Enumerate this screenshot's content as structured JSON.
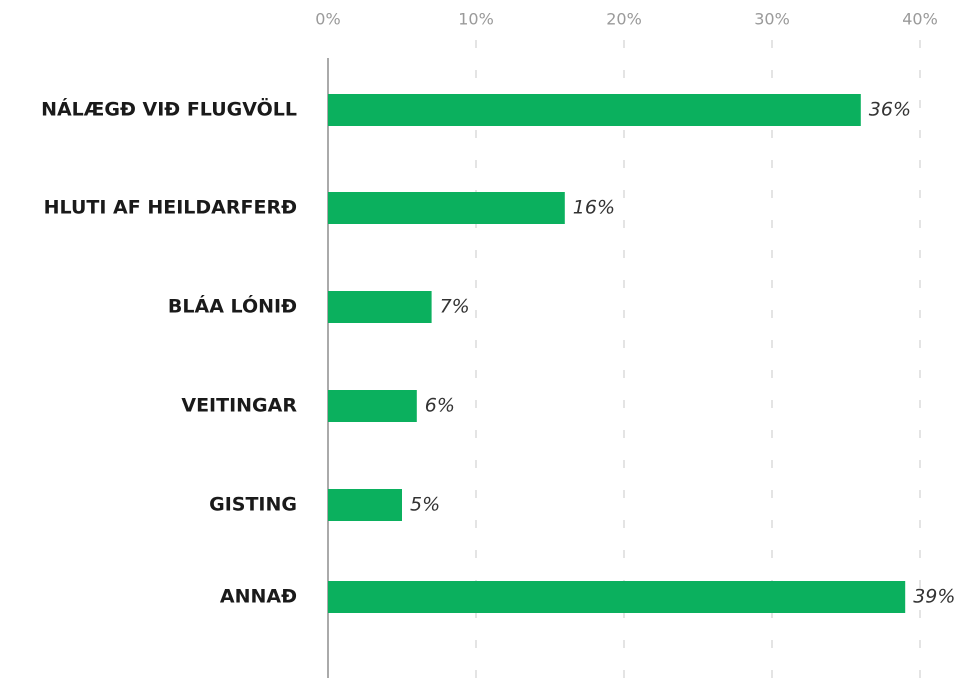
{
  "chart_data": {
    "type": "barh",
    "categories": [
      "NÁLÆGÐ VIÐ FLUGVÖLL",
      "HLUTI AF HEILDARFERÐ",
      "BLÁA LÓNIÐ",
      "VEITINGAR",
      "GISTING",
      "ANNAÐ"
    ],
    "values": [
      36,
      16,
      7,
      6,
      5,
      39
    ],
    "value_labels": [
      "36%",
      "16%",
      "7%",
      "6%",
      "5%",
      "39%"
    ],
    "color": "#0bb05e",
    "xlim": [
      0,
      40
    ],
    "xticks": [
      {
        "value": 0,
        "label": "0%"
      },
      {
        "value": 10,
        "label": "10%"
      },
      {
        "value": 20,
        "label": "20%"
      },
      {
        "value": 30,
        "label": "30%"
      },
      {
        "value": 40,
        "label": "40%"
      }
    ],
    "grid": true
  }
}
